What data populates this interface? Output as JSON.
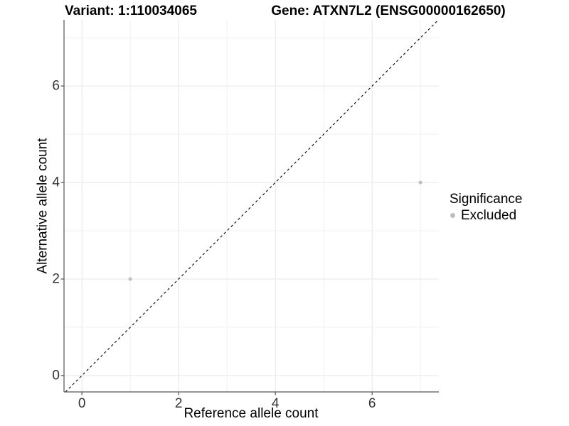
{
  "titles": {
    "variant": "Variant: 1:110034065",
    "gene": "Gene: ATXN7L2 (ENSG00000162650)"
  },
  "legend": {
    "title": "Significance",
    "items": [
      {
        "label": "Excluded",
        "color": "#bebebe"
      }
    ]
  },
  "chart_data": {
    "type": "scatter",
    "titles": [
      "Variant: 1:110034065",
      "Gene: ATXN7L2 (ENSG00000162650)"
    ],
    "xlabel": "Reference allele count",
    "ylabel": "Alternative allele count",
    "xlim": [
      -0.37,
      7.38
    ],
    "ylim": [
      -0.34,
      7.37
    ],
    "x_ticks": [
      0,
      2,
      4,
      6
    ],
    "y_ticks": [
      0,
      2,
      4,
      6
    ],
    "x_minor_ticks": [
      1,
      3,
      5,
      7
    ],
    "y_minor_ticks": [
      1,
      3,
      5,
      7
    ],
    "grid": true,
    "legend_position": "right",
    "series": [
      {
        "name": "Excluded",
        "color": "#bebebe",
        "points": [
          {
            "x": 1,
            "y": 2
          },
          {
            "x": 7,
            "y": 4
          }
        ]
      }
    ],
    "reference_line": {
      "type": "identity",
      "slope": 1,
      "intercept": 0,
      "style": "dashed",
      "color": "#000000"
    }
  },
  "colors": {
    "grid_major": "#e7e7e7",
    "grid_minor": "#f0f0f0",
    "axis_line": "#555555",
    "tick_text": "#333333",
    "point": "#bebebe"
  }
}
